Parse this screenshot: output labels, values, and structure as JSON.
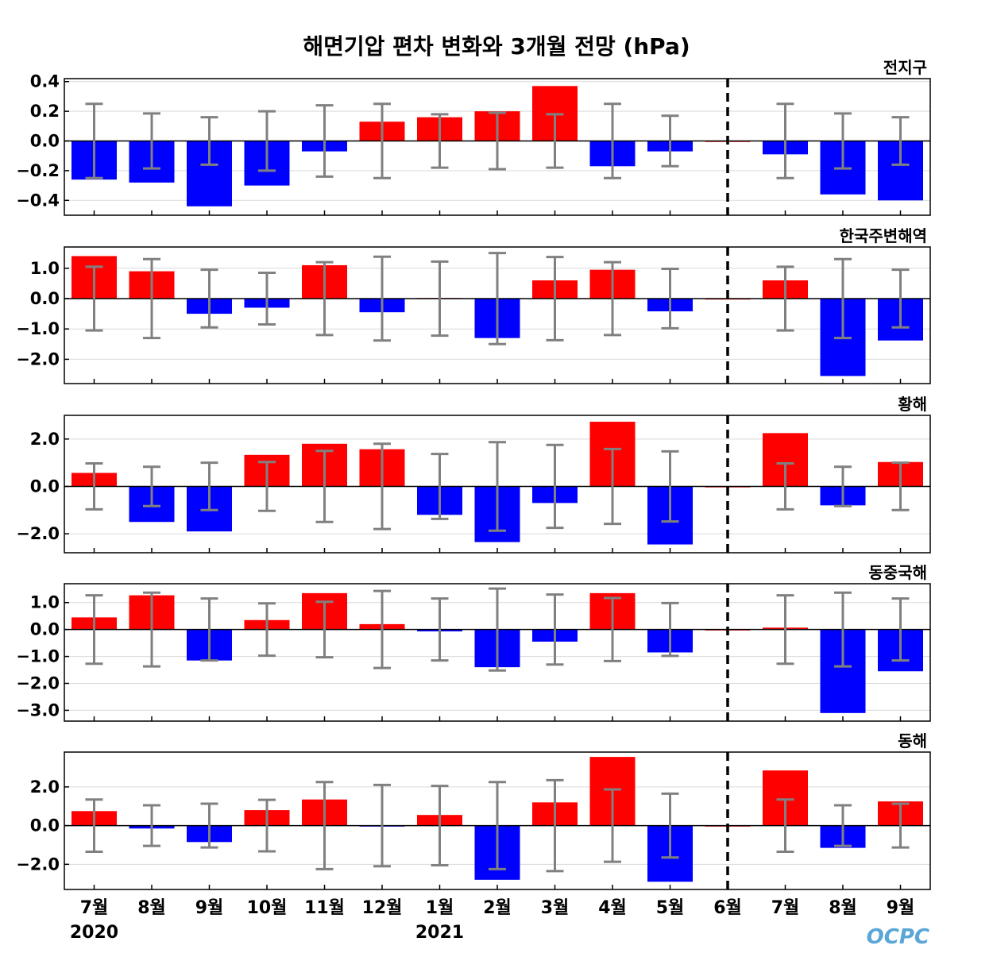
{
  "chart_data": {
    "type": "bar",
    "title": "해면기압 편차 변화와 3개월 전망 (hPa)",
    "categories": [
      "7월",
      "8월",
      "9월",
      "10월",
      "11월",
      "12월",
      "1월",
      "2월",
      "3월",
      "4월",
      "5월",
      "6월",
      "7월",
      "8월",
      "9월"
    ],
    "year_labels": [
      {
        "index": 0,
        "text": "2020"
      },
      {
        "index": 6,
        "text": "2021"
      }
    ],
    "forecast_divider_index": 11,
    "positive_color": "#ff0000",
    "negative_color": "#0000ff",
    "errorbar_color": "#808080",
    "grid": true,
    "panels": [
      {
        "name": "전지구",
        "ylim": [
          -0.5,
          0.42
        ],
        "yticks": [
          0.4,
          0.2,
          0.0,
          -0.2,
          -0.4
        ],
        "ytick_labels": [
          "0.4",
          "0.2",
          "0.0",
          "−0.2",
          "−0.4"
        ],
        "values": [
          -0.26,
          -0.28,
          -0.44,
          -0.3,
          -0.07,
          0.13,
          0.16,
          0.2,
          0.37,
          -0.17,
          -0.07,
          0.0,
          -0.09,
          -0.36,
          -0.4
        ],
        "err": [
          0.25,
          0.185,
          0.16,
          0.2,
          0.24,
          0.25,
          0.18,
          0.19,
          0.18,
          0.25,
          0.17,
          null,
          0.25,
          0.185,
          0.16
        ]
      },
      {
        "name": "한국주변해역",
        "ylim": [
          -2.8,
          1.7
        ],
        "yticks": [
          1.0,
          0.0,
          -1.0,
          -2.0
        ],
        "ytick_labels": [
          "1.0",
          "0.0",
          "−1.0",
          "−2.0"
        ],
        "values": [
          1.4,
          0.9,
          -0.5,
          -0.3,
          1.1,
          -0.45,
          0.02,
          -1.3,
          0.6,
          0.95,
          -0.42,
          0.0,
          0.6,
          -2.55,
          -1.38
        ],
        "err": [
          1.05,
          1.3,
          0.95,
          0.85,
          1.2,
          1.38,
          1.22,
          1.5,
          1.37,
          1.2,
          0.98,
          null,
          1.05,
          1.3,
          0.95
        ]
      },
      {
        "name": "황해",
        "ylim": [
          -2.8,
          3.0
        ],
        "yticks": [
          2.0,
          0.0,
          -2.0
        ],
        "ytick_labels": [
          "2.0",
          "0.0",
          "−2.0"
        ],
        "values": [
          0.57,
          -1.5,
          -1.9,
          1.33,
          1.8,
          1.57,
          -1.2,
          -2.35,
          -0.7,
          2.73,
          -2.45,
          0.0,
          2.25,
          -0.8,
          1.03
        ],
        "err": [
          0.97,
          0.83,
          1.0,
          1.03,
          1.5,
          1.8,
          1.37,
          1.87,
          1.75,
          1.58,
          1.48,
          null,
          0.97,
          0.83,
          1.0
        ]
      },
      {
        "name": "동중국해",
        "ylim": [
          -3.4,
          1.7
        ],
        "yticks": [
          1.0,
          0.0,
          -1.0,
          -2.0,
          -3.0
        ],
        "ytick_labels": [
          "1.0",
          "0.0",
          "−1.0",
          "−2.0",
          "−3.0"
        ],
        "values": [
          0.45,
          1.27,
          -1.15,
          0.35,
          1.35,
          0.2,
          -0.07,
          -1.4,
          -0.45,
          1.35,
          -0.85,
          0.0,
          0.07,
          -3.1,
          -1.55
        ],
        "err": [
          1.27,
          1.37,
          1.15,
          0.97,
          1.03,
          1.43,
          1.15,
          1.52,
          1.3,
          1.17,
          0.98,
          null,
          1.27,
          1.37,
          1.15
        ]
      },
      {
        "name": "동해",
        "ylim": [
          -3.3,
          3.8
        ],
        "yticks": [
          2.0,
          0.0,
          -2.0
        ],
        "ytick_labels": [
          "2.0",
          "0.0",
          "−2.0"
        ],
        "values": [
          0.75,
          -0.15,
          -0.85,
          0.8,
          1.35,
          -0.05,
          0.55,
          -2.8,
          1.2,
          3.55,
          -2.9,
          0.0,
          2.85,
          -1.15,
          1.25
        ],
        "err": [
          1.35,
          1.05,
          1.13,
          1.33,
          2.25,
          2.1,
          2.05,
          2.25,
          2.35,
          1.87,
          1.65,
          null,
          1.35,
          1.05,
          1.13
        ]
      }
    ]
  },
  "logo_text": "OCPC"
}
